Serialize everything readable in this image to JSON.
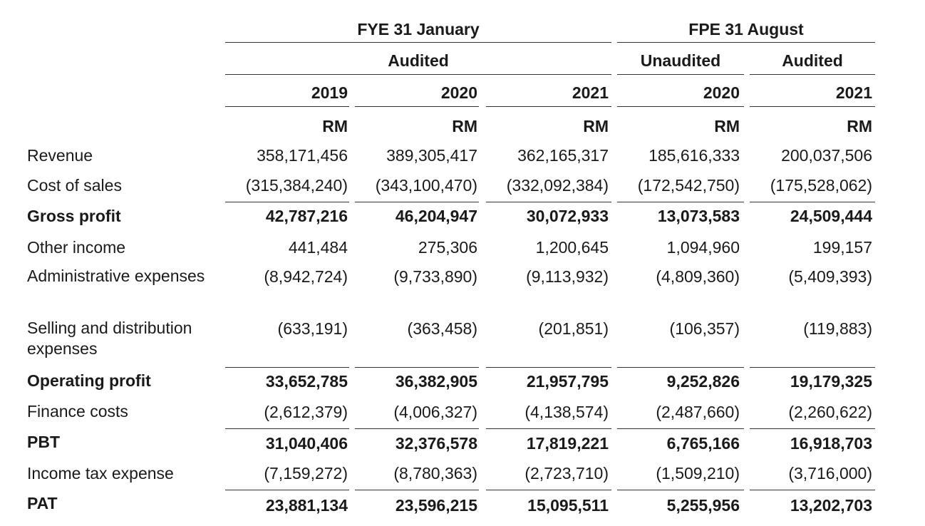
{
  "header": {
    "period_groups": [
      {
        "label": "FYE 31 January"
      },
      {
        "label": "FPE 31 August"
      }
    ],
    "audit_groups": [
      {
        "label": "Audited"
      },
      {
        "label": "Unaudited"
      },
      {
        "label": "Audited"
      }
    ],
    "years": [
      "2019",
      "2020",
      "2021",
      "2020",
      "2021"
    ],
    "units": [
      "RM",
      "RM",
      "RM",
      "RM",
      "RM"
    ]
  },
  "rows": [
    {
      "label": "Revenue",
      "bold": false,
      "values": [
        "358,171,456",
        "389,305,417",
        "362,165,317",
        "185,616,333",
        "200,037,506"
      ]
    },
    {
      "label": "Cost of sales",
      "bold": false,
      "values": [
        "(315,384,240)",
        "(343,100,470)",
        "(332,092,384)",
        "(172,542,750)",
        "(175,528,062)"
      ]
    },
    {
      "label": "Gross profit",
      "bold": true,
      "values": [
        "42,787,216",
        "46,204,947",
        "30,072,933",
        "13,073,583",
        "24,509,444"
      ]
    },
    {
      "label": "Other income",
      "bold": false,
      "values": [
        "441,484",
        "275,306",
        "1,200,645",
        "1,094,960",
        "199,157"
      ]
    },
    {
      "label": "Administrative expenses",
      "bold": false,
      "values": [
        "(8,942,724)",
        "(9,733,890)",
        "(9,113,932)",
        "(4,809,360)",
        "(5,409,393)"
      ]
    },
    {
      "label": "Selling and distribution expenses",
      "bold": false,
      "values": [
        "(633,191)",
        "(363,458)",
        "(201,851)",
        "(106,357)",
        "(119,883)"
      ]
    },
    {
      "label": "Operating profit",
      "bold": true,
      "values": [
        "33,652,785",
        "36,382,905",
        "21,957,795",
        "9,252,826",
        "19,179,325"
      ]
    },
    {
      "label": "Finance costs",
      "bold": false,
      "values": [
        "(2,612,379)",
        "(4,006,327)",
        "(4,138,574)",
        "(2,487,660)",
        "(2,260,622)"
      ]
    },
    {
      "label": "PBT",
      "bold": true,
      "values": [
        "31,040,406",
        "32,376,578",
        "17,819,221",
        "6,765,166",
        "16,918,703"
      ]
    },
    {
      "label": "Income tax expense",
      "bold": false,
      "values": [
        "(7,159,272)",
        "(8,780,363)",
        "(2,723,710)",
        "(1,509,210)",
        "(3,716,000)"
      ]
    },
    {
      "label": "PAT",
      "bold": true,
      "values": [
        "23,881,134",
        "23,596,215",
        "15,095,511",
        "5,255,956",
        "13,202,703"
      ]
    }
  ]
}
